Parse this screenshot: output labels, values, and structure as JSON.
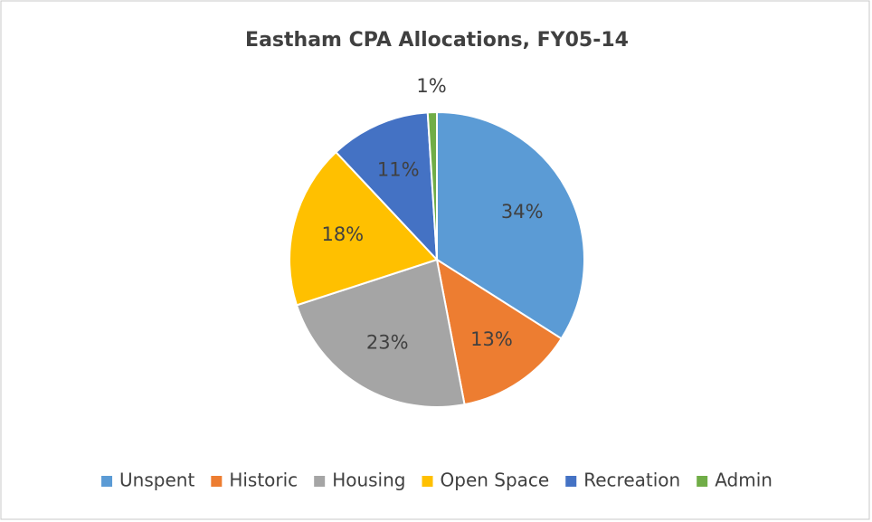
{
  "chart_data": {
    "type": "pie",
    "title": "Eastham CPA Allocations, FY05-14",
    "categories": [
      "Unspent",
      "Historic",
      "Housing",
      "Open Space",
      "Recreation",
      "Admin"
    ],
    "values": [
      34,
      13,
      23,
      18,
      11,
      1
    ],
    "value_labels": [
      "34%",
      "13%",
      "23%",
      "18%",
      "11%",
      "1%"
    ],
    "colors": [
      "#5b9bd5",
      "#ed7d31",
      "#a5a5a5",
      "#ffc000",
      "#4472c4",
      "#70ad47"
    ],
    "legend": "bottom"
  }
}
